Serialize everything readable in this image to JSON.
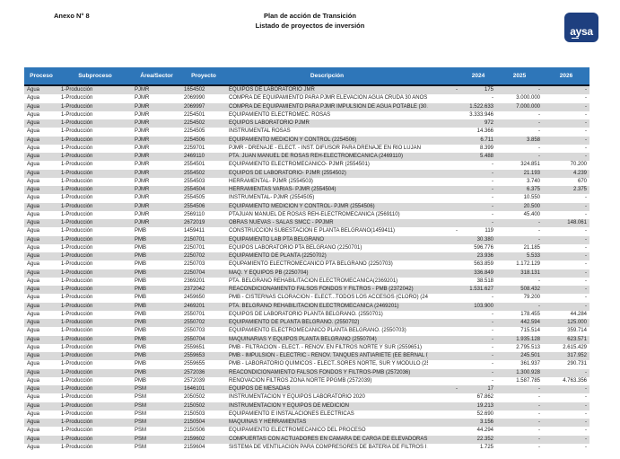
{
  "page": {
    "annex": "Anexo N° 8",
    "title_line1": "Plan de acción de Transición",
    "title_line2": "Listado de proyectos de inversión",
    "logo_text": "aysa"
  },
  "colors": {
    "table_header_bg": "#2e76b9",
    "row_stripe": "#d9d9d9",
    "logo_bg": "#1e3f7f",
    "header_rule": "#101826"
  },
  "table": {
    "columns": [
      "Proceso",
      "Subproceso",
      "Área/Sector",
      "Proyecto",
      "Descripción",
      "",
      "2024",
      "2025",
      "2026"
    ],
    "rows": [
      [
        "Agua",
        "1-Producción",
        "PJMR",
        "1654502",
        "EQUIPOS DE LABORATORIO JMR",
        "-",
        "175",
        "-",
        "-"
      ],
      [
        "Agua",
        "1-Producción",
        "PJMR",
        "2069990",
        "COMPRA DE EQUIPAMIENTO PARA PJMR ELEVACION AGUA CRUDA 30 AÑOS (2069990)",
        "",
        "-",
        "3.000.000",
        "-"
      ],
      [
        "Agua",
        "1-Producción",
        "PJMR",
        "2069997",
        "COMPRA DE EQUIPAMIENTO PARA PJMR IMPULSION DE AGUA POTABLE (30 AÑOS) (2069997",
        "",
        "1.522.633",
        "7.000.000",
        "-"
      ],
      [
        "Agua",
        "1-Producción",
        "PJMR",
        "2254501",
        "EQUIPAMIENTO ELECTROMEC. ROSAS",
        "",
        "3.333.946",
        "-",
        "-"
      ],
      [
        "Agua",
        "1-Producción",
        "PJMR",
        "2254502",
        "EQUIPOS LABORATORIO PJMR",
        "",
        "972",
        "-",
        "-"
      ],
      [
        "Agua",
        "1-Producción",
        "PJMR",
        "2254505",
        "INSTRUMENTAL ROSAS",
        "",
        "14.366",
        "-",
        "-"
      ],
      [
        "Agua",
        "1-Producción",
        "PJMR",
        "2254506",
        "EQUIPAMIENTO MEDICION Y CONTROL (2254506)",
        "",
        "6.711",
        "3.858",
        "-"
      ],
      [
        "Agua",
        "1-Producción",
        "PJMR",
        "2259701",
        "PJMR - DRENAJE  - ELECT. - INST. DIFUSOR PARA DRENAJE EN RÍO LUJAN",
        "",
        "8.399",
        "-",
        "-"
      ],
      [
        "Agua",
        "1-Producción",
        "PJMR",
        "2469110",
        "PTA. JUAN MANUEL DE ROSAS REH-ELECTROMECANICA  (2469110)",
        "",
        "5.488",
        "-",
        "-"
      ],
      [
        "Agua",
        "1-Producción",
        "PJMR",
        "2554501",
        "EQUIPAMIENTO ELECTROMECANICO- PJMR (2554501)",
        "",
        "-",
        "324.851",
        "70.200"
      ],
      [
        "Agua",
        "1-Producción",
        "PJMR",
        "2554502",
        "EQUIPOS DE LABORATORIO- PJMR (2554502)",
        "",
        "-",
        "21.193",
        "4.239"
      ],
      [
        "Agua",
        "1-Producción",
        "PJMR",
        "2554503",
        "HERRAMENTAL- PJMR (2554503)",
        "",
        "-",
        "3.740",
        "670"
      ],
      [
        "Agua",
        "1-Producción",
        "PJMR",
        "2554504",
        "HERRAMIENTAS VARIAS- PJMR (2554504)",
        "",
        "-",
        "6.375",
        "2.375"
      ],
      [
        "Agua",
        "1-Producción",
        "PJMR",
        "2554505",
        "INSTRUMENTAL- PJMR (2554505)",
        "",
        "-",
        "10.550",
        "-"
      ],
      [
        "Agua",
        "1-Producción",
        "PJMR",
        "2554506",
        "EQUIPAMIENTO MEDICION Y CONTROL- PJMR (2554506)",
        "",
        "-",
        "20.500",
        "-"
      ],
      [
        "Agua",
        "1-Producción",
        "PJMR",
        "2569110",
        "PTAJUAN MANUEL DE ROSAS REH-ELECTROMECANICA (2569110)",
        "",
        "-",
        "45.400",
        "-"
      ],
      [
        "Agua",
        "1-Producción",
        "PJMR",
        "2672019",
        "OBRAS NUEVAS - SALAS SMCC - PPJMR",
        "",
        "-",
        "-",
        "148.061"
      ],
      [
        "Agua",
        "1-Producción",
        "PMB",
        "1459411",
        "CONSTRUCCION SUBESTACION E PLANTA BELGRANO(1459411)",
        "-",
        "119",
        "-",
        "-"
      ],
      [
        "Agua",
        "1-Producción",
        "PMB",
        "2150701",
        "EQUIPAMIENTO LAB PTA BELGRANO",
        "",
        "30.380",
        "-",
        "-"
      ],
      [
        "Agua",
        "1-Producción",
        "PMB",
        "2250701",
        "EQUIPOS LABORATORIO PTA BELGRANO (2250701)",
        "",
        "596.776",
        "21.185",
        "-"
      ],
      [
        "Agua",
        "1-Producción",
        "PMB",
        "2250702",
        "EQUIPAMIENTO DE PLANTA (2250702)",
        "",
        "23.936",
        "5.533",
        "-"
      ],
      [
        "Agua",
        "1-Producción",
        "PMB",
        "2250703",
        "EQUPAMIENTO ELECTROMECANICO PTA BELGRANO (2250703)",
        "",
        "563.859",
        "1.172.129",
        "-"
      ],
      [
        "Agua",
        "1-Producción",
        "PMB",
        "2250704",
        "MAQ. Y EQUIPOS PB (2250704)",
        "",
        "336.849",
        "318.131",
        "-"
      ],
      [
        "Agua",
        "1-Producción",
        "PMB",
        "2369201",
        "PTA. BELGRANO REHABILITACION ELECTROMECANICA(2369201)",
        "",
        "38.518",
        "-",
        "-"
      ],
      [
        "Agua",
        "1-Producción",
        "PMB",
        "2372042",
        "REACONDICIONAMIENTO FALSOS FONDOS Y FILTROS - PMB (2372042)",
        "",
        "1.531.627",
        "508.432",
        "-"
      ],
      [
        "Agua",
        "1-Producción",
        "PMB",
        "2459650",
        "PMB - CISTERNAS CLORACION - ELECT...TODOS LOS ACCESOS (CLORO) (2459650)",
        "",
        "-",
        "79.200",
        "-"
      ],
      [
        "Agua",
        "1-Producción",
        "PMB",
        "2469201",
        "PTA. BELGRANO REHABILITACION ELECTROMECANICA (2469201)",
        "",
        "103.900",
        "-",
        "-"
      ],
      [
        "Agua",
        "1-Producción",
        "PMB",
        "2550701",
        "EQUIPOS DE LABORATORIO PLANTA BELGRANO. (2550701)",
        "",
        "-",
        "178.455",
        "44.284"
      ],
      [
        "Agua",
        "1-Producción",
        "PMB",
        "2550702",
        "EQUIPAMIENTO DE PLANTA BELGRANO. (2550702)",
        "",
        "-",
        "442.594",
        "125.000"
      ],
      [
        "Agua",
        "1-Producción",
        "PMB",
        "2550703",
        "EQUIPAMIENTO ELECTROMECANICO PLANTA BELGRANO. (2550703)",
        "",
        "-",
        "715.514",
        "359.714"
      ],
      [
        "Agua",
        "1-Producción",
        "PMB",
        "2550704",
        "MAQUINARIAS Y EQUIPOS PLANTA BELGRANO (2550704)",
        "",
        "-",
        "1.935.128",
        "623.571"
      ],
      [
        "Agua",
        "1-Producción",
        "PMB",
        "2559651",
        "PMB - FILTRACIÓN - ELECT. - RENOV. EN FILTROS NORTE Y SUR (2559651)",
        "",
        "-",
        "2.795.513",
        "2.615.429"
      ],
      [
        "Agua",
        "1-Producción",
        "PMB",
        "2559653",
        "PMB - IMPULSIÓN - ELECTRIC - RENOV. TANQUES ANTIARIETE (EE BERNAL I) (2559653)",
        "",
        "-",
        "245.501",
        "317.952"
      ],
      [
        "Agua",
        "1-Producción",
        "PMB",
        "2559655",
        "PMB - LABORATORIO QUÍMICOS  - ELECT..SORES NORTE, SUR Y MODULO (2559655)",
        "",
        "-",
        "361.937",
        "290.731"
      ],
      [
        "Agua",
        "1-Producción",
        "PMB",
        "2572036",
        "REACONDICIONAMIENTO FALSOS FONDOS Y FILTROS-PMB (2572036)",
        "",
        "-",
        "1.300.928",
        "-"
      ],
      [
        "Agua",
        "1-Producción",
        "PMB",
        "2572039",
        "RENOVACIÓN FILTROS ZONA NORTE PPGMB (2572039)",
        "",
        "-",
        "1.587.785",
        "4.763.356"
      ],
      [
        "Agua",
        "1-Producción",
        "PSM",
        "1646101",
        "EQUIPOS DE MESADAS",
        "-",
        "17",
        "-",
        "-"
      ],
      [
        "Agua",
        "1-Producción",
        "PSM",
        "2050502",
        "INSTRUMENTACIÓN Y EQUIPOS LABORATORIO 2020",
        "",
        "67.862",
        "-",
        "-"
      ],
      [
        "Agua",
        "1-Producción",
        "PSM",
        "2150502",
        "INSTRUMENTACIÓN Y EQUIPOS DE MEDICIÓN",
        "",
        "19.213",
        "-",
        "-"
      ],
      [
        "Agua",
        "1-Producción",
        "PSM",
        "2150503",
        "EQUIPAMIENTO E INSTALACIONES ELECTRICAS",
        "",
        "52.690",
        "-",
        "-"
      ],
      [
        "Agua",
        "1-Producción",
        "PSM",
        "2150504",
        "MAQUINAS Y HERRAMIENTAS",
        "",
        "3.156",
        "-",
        "-"
      ],
      [
        "Agua",
        "1-Producción",
        "PSM",
        "2150506",
        "EQUIPAMIENTO ELECTROMECANICO DEL PROCESO",
        "",
        "44.294",
        "-",
        "-"
      ],
      [
        "Agua",
        "1-Producción",
        "PSM",
        "2159602",
        "COMPUERTAS CON ACTUADORES EN CÁMARA DE CARGA DE ELEVADORAS PRINCIPALES ANTI(",
        "",
        "22.352",
        "-",
        "-"
      ],
      [
        "Agua",
        "1-Producción",
        "PSM",
        "2159604",
        "SISTEMA DE VENTILACIÓN PARA COMPRESORES DE BATERÍA DE FILTROS I A VI ¿ PSM",
        "",
        "1.725",
        "-",
        "-"
      ]
    ]
  }
}
